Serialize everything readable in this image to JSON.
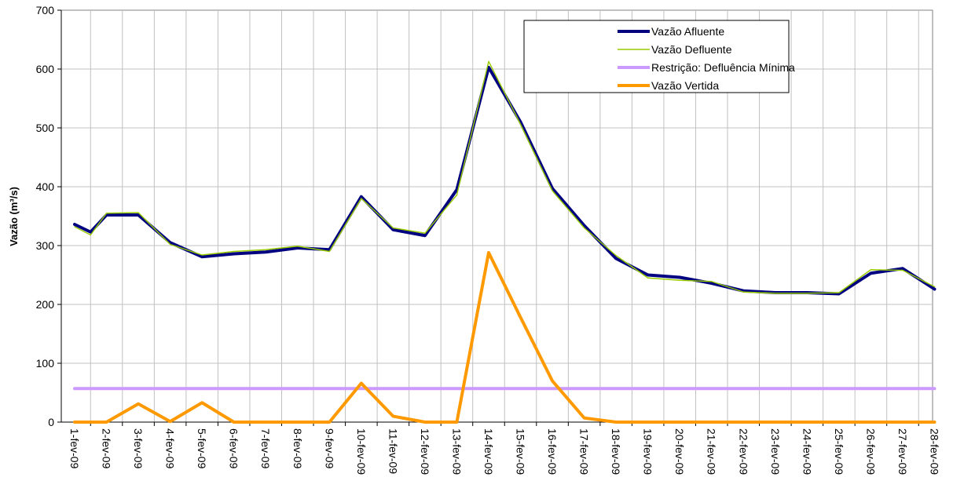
{
  "chart_data": {
    "type": "line",
    "title": "",
    "xlabel": "",
    "ylabel": "Vazão (m³/s)",
    "ylim": [
      0,
      700
    ],
    "yticks": [
      0,
      100,
      200,
      300,
      400,
      500,
      600,
      700
    ],
    "grid": true,
    "legend_position": "top-right",
    "categories": [
      "1-fev-09",
      "2-fev-09",
      "3-fev-09",
      "4-fev-09",
      "5-fev-09",
      "6-fev-09",
      "7-fev-09",
      "8-fev-09",
      "9-fev-09",
      "10-fev-09",
      "11-fev-09",
      "12-fev-09",
      "13-fev-09",
      "14-fev-09",
      "15-fev-09",
      "16-fev-09",
      "17-fev-09",
      "18-fev-09",
      "19-fev-09",
      "20-fev-09",
      "21-fev-09",
      "22-fev-09",
      "23-fev-09",
      "24-fev-09",
      "25-fev-09",
      "26-fev-09",
      "27-fev-09",
      "28-fev-09"
    ],
    "category_points": [
      0,
      1,
      2,
      3,
      4,
      5,
      6,
      7,
      8,
      9,
      10,
      11,
      12,
      13,
      14,
      15,
      16,
      17,
      18,
      19,
      20,
      21,
      22,
      23,
      24,
      25,
      26,
      27
    ],
    "series": [
      {
        "name": "Vazão Afluente",
        "color": "#000080",
        "width": 4,
        "x": [
          0,
          0.5,
          1,
          2,
          3,
          4,
          5,
          6,
          7,
          8,
          9,
          10,
          11,
          12,
          13,
          14,
          15,
          16,
          17,
          18,
          19,
          20,
          21,
          22,
          23,
          24,
          25,
          26,
          27
        ],
        "values": [
          336,
          323,
          352,
          352,
          305,
          281,
          286,
          289,
          296,
          293,
          383,
          327,
          317,
          395,
          603,
          510,
          397,
          334,
          278,
          250,
          246,
          236,
          223,
          220,
          220,
          218,
          253,
          261,
          226
        ]
      },
      {
        "name": "Vazão Defluente",
        "color": "#99cc00",
        "width": 1.4,
        "x": [
          0,
          0.5,
          1,
          2,
          3,
          4,
          5,
          6,
          7,
          8,
          9,
          10,
          11,
          12,
          13,
          14,
          15,
          16,
          17,
          18,
          19,
          20,
          21,
          22,
          23,
          24,
          25,
          26,
          27
        ],
        "values": [
          332,
          318,
          355,
          356,
          302,
          284,
          290,
          293,
          299,
          290,
          380,
          330,
          321,
          386,
          613,
          506,
          393,
          330,
          283,
          245,
          241,
          239,
          221,
          219,
          219,
          220,
          259,
          258,
          230
        ]
      },
      {
        "name": "Restrição: Defluência Mínima",
        "color": "#cc99ff",
        "width": 4,
        "x": [
          0,
          27
        ],
        "values": [
          57,
          57
        ]
      },
      {
        "name": "Vazão Vertida",
        "color": "#ff9900",
        "width": 4,
        "x": [
          0,
          1,
          2,
          3,
          4,
          5,
          6,
          7,
          8,
          9,
          10,
          11,
          12,
          13,
          14,
          15,
          16,
          17,
          18,
          19,
          20,
          21,
          22,
          23,
          24,
          25,
          26,
          27
        ],
        "values": [
          0,
          0,
          31,
          1,
          33,
          0,
          0,
          0,
          0,
          66,
          10,
          0,
          0,
          288,
          178,
          70,
          7,
          0,
          0,
          0,
          0,
          0,
          0,
          0,
          0,
          0,
          0,
          0
        ]
      }
    ]
  }
}
